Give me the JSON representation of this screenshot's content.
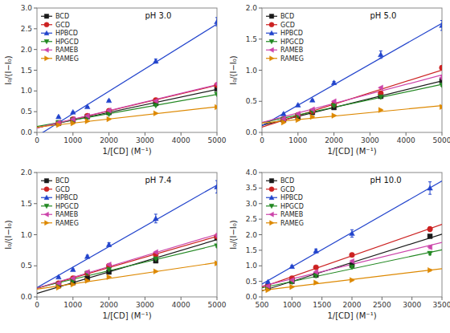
{
  "chart_data": [
    {
      "type": "scatter",
      "title": "pH 3.0",
      "x_label": "1/[CD] (M⁻¹)",
      "y_label": "I₀/(I−I₀)",
      "xlim": [
        0,
        5000
      ],
      "ylim": [
        0,
        3
      ],
      "xticks": [
        0,
        1000,
        2000,
        3000,
        4000,
        5000
      ],
      "yticks": [
        {
          "value": 0,
          "label": "0.0"
        },
        0.5,
        {
          "value": 1,
          "label": "1.0"
        },
        1.5,
        {
          "value": 2,
          "label": "2.0"
        },
        2.5,
        {
          "value": 3,
          "label": "3.0"
        }
      ],
      "legend": "upper left",
      "series": [
        {
          "name": "BCD",
          "color": "#1a1a1a",
          "marker": "square",
          "x": [
            600,
            1000,
            1400,
            2000,
            3300,
            5000
          ],
          "values": [
            0.22,
            0.3,
            0.38,
            0.48,
            0.7,
            1.05
          ],
          "errors": [
            0.01,
            0.01,
            0.01,
            0.01,
            0.01,
            0.03
          ],
          "fit": {
            "x": [
              0,
              5000
            ],
            "y": [
              0.1106,
              1.0378
            ]
          }
        },
        {
          "name": "GCD",
          "color": "#cc2222",
          "marker": "circle",
          "x": [
            600,
            1000,
            1400,
            2000,
            3300,
            5000
          ],
          "values": [
            0.22,
            0.32,
            0.4,
            0.52,
            0.78,
            1.14
          ],
          "errors": [
            0.01,
            0.01,
            0.01,
            0.01,
            0.01,
            0.03
          ],
          "fit": {
            "x": [
              0,
              5000
            ],
            "y": [
              0.1058,
              1.1378
            ]
          }
        },
        {
          "name": "HPBCD",
          "color": "#2244cc",
          "marker": "triangle-up",
          "x": [
            600,
            1000,
            1400,
            2000,
            3300,
            5000
          ],
          "values": [
            0.38,
            0.49,
            0.62,
            0.77,
            1.72,
            2.67
          ],
          "errors": [
            0.01,
            0.01,
            0.01,
            0.01,
            0.05,
            0.1
          ],
          "fit": {
            "x": [
              0,
              5000
            ],
            "y": [
              -0.0883,
              2.6109
            ]
          }
        },
        {
          "name": "HPGCD",
          "color": "#228822",
          "marker": "triangle-down",
          "x": [
            600,
            1000,
            1400,
            2000,
            3300,
            5000
          ],
          "values": [
            0.24,
            0.3,
            0.36,
            0.44,
            0.65,
            0.92
          ],
          "errors": [
            0.01,
            0.01,
            0.01,
            0.01,
            0.01,
            0.02
          ],
          "fit": {
            "x": [
              0,
              5000
            ],
            "y": [
              0.1423,
              0.9153
            ]
          }
        },
        {
          "name": "RAMEB",
          "color": "#cc44aa",
          "marker": "triangle-left",
          "x": [
            600,
            1000,
            1400,
            2000,
            3300,
            5000
          ],
          "values": [
            0.24,
            0.32,
            0.4,
            0.53,
            0.76,
            1.17
          ],
          "errors": [
            0.01,
            0.01,
            0.01,
            0.01,
            0.01,
            0.03
          ],
          "fit": {
            "x": [
              0,
              5000
            ],
            "y": [
              0.108,
              1.15
            ]
          }
        },
        {
          "name": "RAMEG",
          "color": "#dd8800",
          "marker": "triangle-right",
          "x": [
            600,
            1000,
            1400,
            2000,
            3300,
            5000
          ],
          "values": [
            0.18,
            0.22,
            0.27,
            0.32,
            0.46,
            0.61
          ],
          "errors": [
            0.01,
            0.01,
            0.01,
            0.01,
            0.01,
            0.02
          ],
          "fit": {
            "x": [
              0,
              5000
            ],
            "y": [
              0.1257,
              0.6166
            ]
          }
        }
      ]
    },
    {
      "type": "scatter",
      "title": "pH 5.0",
      "x_label": "1/[CD] (M⁻¹)",
      "y_label": "I₀/(I−I₀)",
      "xlim": [
        0,
        5000
      ],
      "ylim": [
        0,
        2
      ],
      "xticks": [
        0,
        1000,
        2000,
        3000,
        4000,
        5000
      ],
      "yticks": [
        {
          "value": 0,
          "label": "0.0"
        },
        0.5,
        {
          "value": 1,
          "label": "1.0"
        },
        1.5,
        {
          "value": 2,
          "label": "2.0"
        }
      ],
      "legend": "upper left",
      "series": [
        {
          "name": "BCD",
          "color": "#1a1a1a",
          "marker": "square",
          "x": [
            600,
            1000,
            1400,
            2000,
            3300,
            5000
          ],
          "values": [
            0.2,
            0.25,
            0.32,
            0.4,
            0.58,
            0.83
          ],
          "errors": [
            0.01,
            0.01,
            0.01,
            0.01,
            0.01,
            0.02
          ],
          "fit": {
            "x": [
              0,
              5000
            ],
            "y": [
              0.113,
              0.828
            ]
          }
        },
        {
          "name": "GCD",
          "color": "#cc2222",
          "marker": "circle",
          "x": [
            600,
            1000,
            1400,
            2000,
            3300,
            5000
          ],
          "values": [
            0.21,
            0.28,
            0.34,
            0.45,
            0.63,
            1.04
          ],
          "errors": [
            0.01,
            0.01,
            0.01,
            0.01,
            0.01,
            0.03
          ],
          "fit": {
            "x": [
              0,
              5000
            ],
            "y": [
              0.0845,
              1.003
            ]
          }
        },
        {
          "name": "HPBCD",
          "color": "#2244cc",
          "marker": "triangle-up",
          "x": [
            600,
            1000,
            1400,
            2000,
            3300,
            5000
          ],
          "values": [
            0.3,
            0.44,
            0.52,
            0.8,
            1.25,
            1.72
          ],
          "errors": [
            0.01,
            0.01,
            0.01,
            0.02,
            0.06,
            0.08
          ],
          "fit": {
            "x": [
              0,
              5000
            ],
            "y": [
              0.108,
              1.7554
            ]
          }
        },
        {
          "name": "HPGCD",
          "color": "#228822",
          "marker": "triangle-down",
          "x": [
            600,
            1000,
            1400,
            2000,
            3300,
            5000
          ],
          "values": [
            0.21,
            0.27,
            0.34,
            0.43,
            0.57,
            0.76
          ],
          "errors": [
            0.01,
            0.01,
            0.01,
            0.01,
            0.01,
            0.02
          ],
          "fit": {
            "x": [
              0,
              5000
            ],
            "y": [
              0.1565,
              0.7734
            ]
          }
        },
        {
          "name": "RAMEB",
          "color": "#cc44aa",
          "marker": "triangle-left",
          "x": [
            600,
            1000,
            1400,
            2000,
            3300,
            5000
          ],
          "values": [
            0.22,
            0.3,
            0.37,
            0.5,
            0.72,
            0.88
          ],
          "errors": [
            0.01,
            0.01,
            0.01,
            0.01,
            0.01,
            0.03
          ],
          "fit": {
            "x": [
              0,
              5000
            ],
            "y": [
              0.1595,
              0.9237
            ]
          }
        },
        {
          "name": "RAMEG",
          "color": "#dd8800",
          "marker": "triangle-right",
          "x": [
            600,
            1000,
            1400,
            2000,
            3300,
            5000
          ],
          "values": [
            0.16,
            0.2,
            0.25,
            0.27,
            0.36,
            0.41
          ],
          "errors": [
            0.01,
            0.01,
            0.01,
            0.01,
            0.01,
            0.02
          ],
          "fit": {
            "x": [
              0,
              5000
            ],
            "y": [
              0.1512,
              0.4304
            ]
          }
        }
      ]
    },
    {
      "type": "scatter",
      "title": "pH 7.4",
      "x_label": "1/[CD] (M⁻¹)",
      "y_label": "I₀/(I−I₀)",
      "xlim": [
        0,
        5000
      ],
      "ylim": [
        0,
        2
      ],
      "xticks": [
        0,
        1000,
        2000,
        3000,
        4000,
        5000
      ],
      "yticks": [
        {
          "value": 0,
          "label": "0.0"
        },
        0.5,
        {
          "value": 1,
          "label": "1.0"
        },
        1.5,
        {
          "value": 2,
          "label": "2.0"
        }
      ],
      "legend": "upper left",
      "series": [
        {
          "name": "BCD",
          "color": "#1a1a1a",
          "marker": "square",
          "x": [
            600,
            1000,
            1400,
            2000,
            3300,
            5000
          ],
          "values": [
            0.18,
            0.23,
            0.3,
            0.4,
            0.58,
            0.95
          ],
          "errors": [
            0.01,
            0.01,
            0.01,
            0.01,
            0.01,
            0.02
          ],
          "fit": {
            "x": [
              0,
              5000
            ],
            "y": [
              0.0573,
              0.9205
            ]
          }
        },
        {
          "name": "GCD",
          "color": "#cc2222",
          "marker": "circle",
          "x": [
            600,
            1000,
            1400,
            2000,
            3300,
            5000
          ],
          "values": [
            0.22,
            0.3,
            0.38,
            0.5,
            0.68,
            0.97
          ],
          "errors": [
            0.01,
            0.01,
            0.01,
            0.01,
            0.01,
            0.03
          ],
          "fit": {
            "x": [
              0,
              5000
            ],
            "y": [
              0.1374,
              0.9741
            ]
          }
        },
        {
          "name": "HPBCD",
          "color": "#2244cc",
          "marker": "triangle-up",
          "x": [
            600,
            1000,
            1400,
            2000,
            3300,
            5000
          ],
          "values": [
            0.32,
            0.44,
            0.65,
            0.84,
            1.26,
            1.77
          ],
          "errors": [
            0.01,
            0.01,
            0.02,
            0.03,
            0.07,
            0.1
          ],
          "fit": {
            "x": [
              0,
              5000
            ],
            "y": [
              0.1492,
              1.7976
            ]
          }
        },
        {
          "name": "HPGCD",
          "color": "#228822",
          "marker": "triangle-down",
          "x": [
            600,
            1000,
            1400,
            2000,
            3300,
            5000
          ],
          "values": [
            0.2,
            0.26,
            0.38,
            0.44,
            0.61,
            0.82
          ],
          "errors": [
            0.01,
            0.01,
            0.01,
            0.01,
            0.01,
            0.02
          ],
          "fit": {
            "x": [
              0,
              5000
            ],
            "y": [
              0.1452,
              0.8364
            ]
          }
        },
        {
          "name": "RAMEB",
          "color": "#cc44aa",
          "marker": "triangle-left",
          "x": [
            600,
            1000,
            1400,
            2000,
            3300,
            5000
          ],
          "values": [
            0.22,
            0.3,
            0.4,
            0.52,
            0.72,
            0.99
          ],
          "errors": [
            0.01,
            0.01,
            0.01,
            0.01,
            0.01,
            0.03
          ],
          "fit": {
            "x": [
              0,
              5000
            ],
            "y": [
              0.1414,
              1.0066
            ]
          }
        },
        {
          "name": "RAMEG",
          "color": "#dd8800",
          "marker": "triangle-right",
          "x": [
            600,
            1000,
            1400,
            2000,
            3300,
            5000
          ],
          "values": [
            0.15,
            0.2,
            0.26,
            0.32,
            0.41,
            0.54
          ],
          "errors": [
            0.01,
            0.01,
            0.01,
            0.01,
            0.01,
            0.02
          ],
          "fit": {
            "x": [
              0,
              5000
            ],
            "y": [
              0.1229,
              0.5525
            ]
          }
        }
      ]
    },
    {
      "type": "scatter",
      "title": "pH 10.0",
      "x_label": "1/[CD] (M⁻¹)",
      "y_label": "I₀/(I−I₀)",
      "xlim": [
        500,
        3500
      ],
      "ylim": [
        0,
        4
      ],
      "xticks": [
        500,
        1000,
        1500,
        2000,
        2500,
        3000,
        3500
      ],
      "yticks": [
        {
          "value": 0,
          "label": "0.0"
        },
        0.5,
        {
          "value": 1,
          "label": "1.0"
        },
        1.5,
        {
          "value": 2,
          "label": "2.0"
        },
        2.5,
        {
          "value": 3,
          "label": "3.0"
        },
        3.5,
        {
          "value": 4,
          "label": "4.0"
        }
      ],
      "legend": "upper left",
      "series": [
        {
          "name": "BCD",
          "color": "#1a1a1a",
          "marker": "square",
          "x": [
            600,
            1000,
            1400,
            2000,
            3300
          ],
          "values": [
            0.32,
            0.5,
            0.7,
            1.02,
            1.95
          ],
          "errors": [
            0.01,
            0.01,
            0.02,
            0.03,
            0.05
          ],
          "fit": {
            "x": [
              500,
              3500
            ],
            "y": [
              0.193,
              2.0163
            ]
          }
        },
        {
          "name": "GCD",
          "color": "#cc2222",
          "marker": "circle",
          "x": [
            600,
            1000,
            1400,
            2000,
            3300
          ],
          "values": [
            0.38,
            0.6,
            0.95,
            1.35,
            2.18
          ],
          "errors": [
            0.01,
            0.01,
            0.02,
            0.04,
            0.08
          ],
          "fit": {
            "x": [
              500,
              3500
            ],
            "y": [
              0.3098,
              2.3327
            ]
          }
        },
        {
          "name": "HPBCD",
          "color": "#2244cc",
          "marker": "triangle-up",
          "x": [
            600,
            1000,
            1400,
            2000,
            3300
          ],
          "values": [
            0.48,
            0.98,
            1.48,
            2.04,
            3.5
          ],
          "errors": [
            0.02,
            0.03,
            0.06,
            0.12,
            0.2
          ],
          "fit": {
            "x": [
              500,
              3500
            ],
            "y": [
              0.4153,
              3.7275
            ]
          }
        },
        {
          "name": "HPGCD",
          "color": "#228822",
          "marker": "triangle-down",
          "x": [
            600,
            1000,
            1400,
            2000,
            3300
          ],
          "values": [
            0.3,
            0.48,
            0.68,
            0.96,
            1.4
          ],
          "errors": [
            0.01,
            0.01,
            0.02,
            0.03,
            0.05
          ],
          "fit": {
            "x": [
              500,
              3500
            ],
            "y": [
              0.2901,
              1.5158
            ]
          }
        },
        {
          "name": "RAMEB",
          "color": "#cc44aa",
          "marker": "triangle-left",
          "x": [
            600,
            1000,
            1400,
            2000,
            3300
          ],
          "values": [
            0.35,
            0.54,
            0.8,
            1.15,
            1.6
          ],
          "errors": [
            0.01,
            0.01,
            0.02,
            0.03,
            0.05
          ],
          "fit": {
            "x": [
              500,
              3500
            ],
            "y": [
              0.3437,
              1.7514
            ]
          }
        },
        {
          "name": "RAMEG",
          "color": "#dd8800",
          "marker": "triangle-right",
          "x": [
            600,
            1000,
            1400,
            2000,
            3300
          ],
          "values": [
            0.22,
            0.32,
            0.46,
            0.54,
            0.86
          ],
          "errors": [
            0.01,
            0.01,
            0.01,
            0.02,
            0.03
          ],
          "fit": {
            "x": [
              500,
              3500
            ],
            "y": [
              0.2104,
              0.9076
            ]
          }
        }
      ]
    }
  ]
}
